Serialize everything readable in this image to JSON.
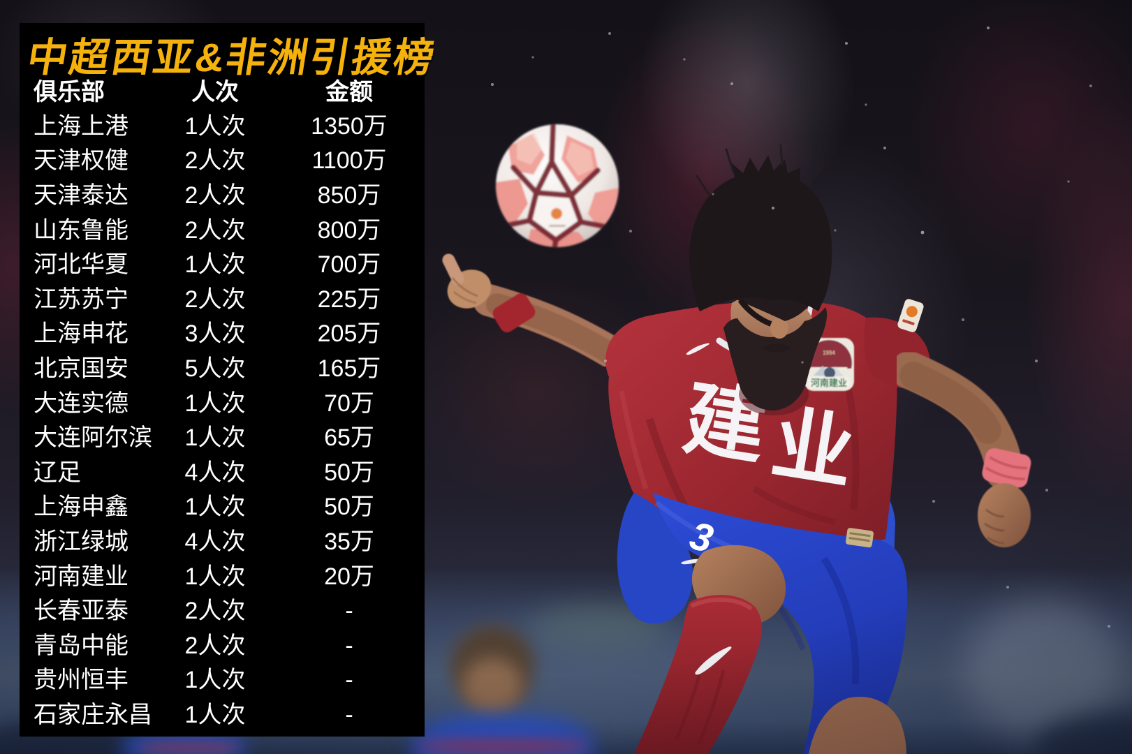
{
  "chart_data": {
    "type": "table",
    "title": "中超西亚&非洲引援榜",
    "columns": [
      "俱乐部",
      "人次",
      "金额"
    ],
    "rows": [
      [
        "上海上港",
        "1人次",
        "1350万"
      ],
      [
        "天津权健",
        "2人次",
        "1100万"
      ],
      [
        "天津泰达",
        "2人次",
        "850万"
      ],
      [
        "山东鲁能",
        "2人次",
        "800万"
      ],
      [
        "河北华夏",
        "1人次",
        "700万"
      ],
      [
        "江苏苏宁",
        "2人次",
        "225万"
      ],
      [
        "上海申花",
        "3人次",
        "205万"
      ],
      [
        "北京国安",
        "5人次",
        "165万"
      ],
      [
        "大连实德",
        "1人次",
        "70万"
      ],
      [
        "大连阿尔滨",
        "1人次",
        "65万"
      ],
      [
        "辽足",
        "4人次",
        "50万"
      ],
      [
        "上海申鑫",
        "1人次",
        "50万"
      ],
      [
        "浙江绿城",
        "4人次",
        "35万"
      ],
      [
        "河南建业",
        "1人次",
        "20万"
      ],
      [
        "长春亚泰",
        "2人次",
        "-"
      ],
      [
        "青岛中能",
        "2人次",
        "-"
      ],
      [
        "贵州恒丰",
        "1人次",
        "-"
      ],
      [
        "石家庄永昌",
        "1人次",
        "-"
      ]
    ],
    "legend": "none",
    "grid": false
  },
  "photo": {
    "jersey_char_left": "建",
    "jersey_char_right": "业",
    "shorts_number": "3",
    "badge_text": "河南建业",
    "badge_year": "1994"
  },
  "colors": {
    "title_yellow": "#F6B20C",
    "panel_black": "#000000",
    "table_text": "#FFFFFF",
    "jersey_red": "#A62A33",
    "shorts_blue": "#2B4AD0",
    "sock_red": "#A62B33",
    "wristband_pink": "#E5737E"
  }
}
